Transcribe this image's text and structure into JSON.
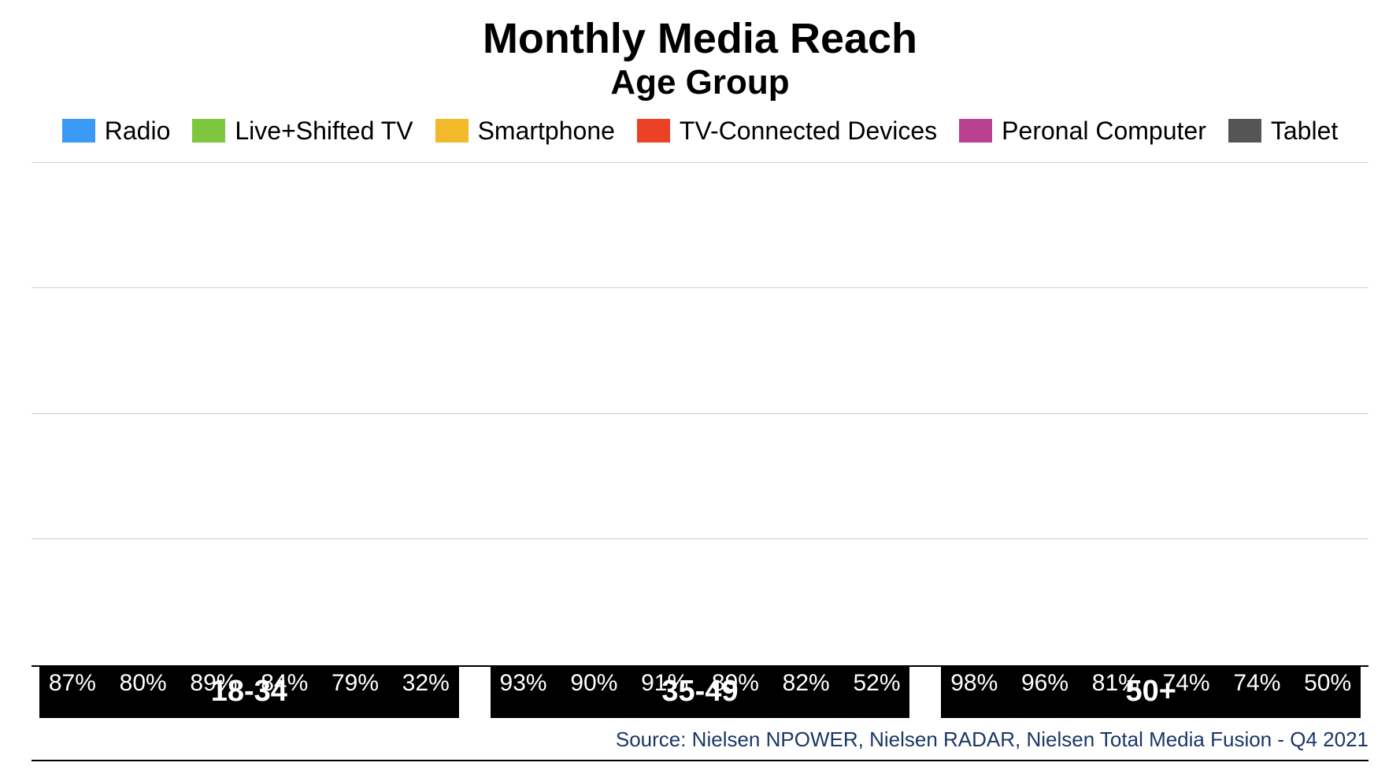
{
  "chart": {
    "type": "bar",
    "title": "Monthly Media Reach",
    "subtitle": "Age Group",
    "title_fontsize": 54,
    "subtitle_fontsize": 44,
    "background_color": "#ffffff",
    "grid_color": "#cfcfcf",
    "axis_line_color": "#000000",
    "ylim": [
      0,
      100
    ],
    "gridlines_pct": [
      25,
      50,
      75,
      100
    ],
    "legend": {
      "fontsize": 32,
      "items": [
        {
          "label": "Radio",
          "color": "#3b9bf4"
        },
        {
          "label": "Live+Shifted TV",
          "color": "#7dc63e"
        },
        {
          "label": "Smartphone",
          "color": "#f2b92b"
        },
        {
          "label": "TV-Connected Devices",
          "color": "#ed4126"
        },
        {
          "label": "Peronal Computer",
          "color": "#b8428f"
        },
        {
          "label": "Tablet",
          "color": "#555555"
        }
      ]
    },
    "series_colors": [
      "#3b9bf4",
      "#7dc63e",
      "#f2b92b",
      "#ed4126",
      "#b8428f",
      "#555555"
    ],
    "value_label_color": "#ffffff",
    "value_label_fontsize": 30,
    "axis_label_bg": "#000000",
    "axis_label_color": "#ffffff",
    "axis_label_fontsize": 38,
    "groups": [
      {
        "label": "18-34",
        "values": [
          87,
          80,
          89,
          84,
          79,
          32
        ],
        "display": [
          "87%",
          "80%",
          "89%",
          "84%",
          "79%",
          "32%"
        ]
      },
      {
        "label": "35-49",
        "values": [
          93,
          90,
          91,
          89,
          82,
          52
        ],
        "display": [
          "93%",
          "90%",
          "91%",
          "89%",
          "82%",
          "52%"
        ]
      },
      {
        "label": "50+",
        "values": [
          98,
          96,
          81,
          74,
          74,
          50
        ],
        "display": [
          "98%",
          "96%",
          "81%",
          "74%",
          "74%",
          "50%"
        ]
      }
    ],
    "source": "Source: Nielsen NPOWER, Nielsen RADAR, Nielsen Total Media Fusion - Q4 2021",
    "source_color": "#1b3766",
    "source_fontsize": 26
  }
}
